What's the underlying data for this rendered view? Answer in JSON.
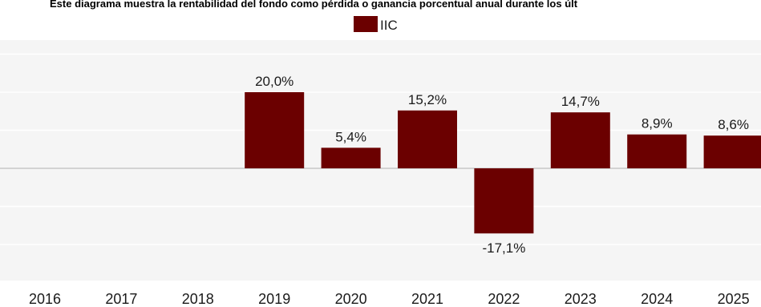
{
  "chart_data": {
    "type": "bar",
    "subtitle": "Este diagrama muestra la rentabilidad del fondo como pérdida o ganancia porcentual anual durante los últ",
    "categories": [
      "2016",
      "2017",
      "2018",
      "2019",
      "2020",
      "2021",
      "2022",
      "2023",
      "2024",
      "2025"
    ],
    "series": [
      {
        "name": "IIC",
        "values": [
          null,
          null,
          null,
          20.0,
          5.4,
          15.2,
          -17.1,
          14.7,
          8.9,
          8.6
        ],
        "labels": [
          "",
          "",
          "",
          "20,0%",
          "5,4%",
          "15,2%",
          "-17,1%",
          "14,7%",
          "8,9%",
          "8,6%"
        ]
      }
    ],
    "ylim": [
      -30,
      30
    ],
    "grid": true,
    "legend": "top-center",
    "colors": {
      "bar": "#6b0000",
      "plot_background": "#f5f5f5"
    }
  }
}
